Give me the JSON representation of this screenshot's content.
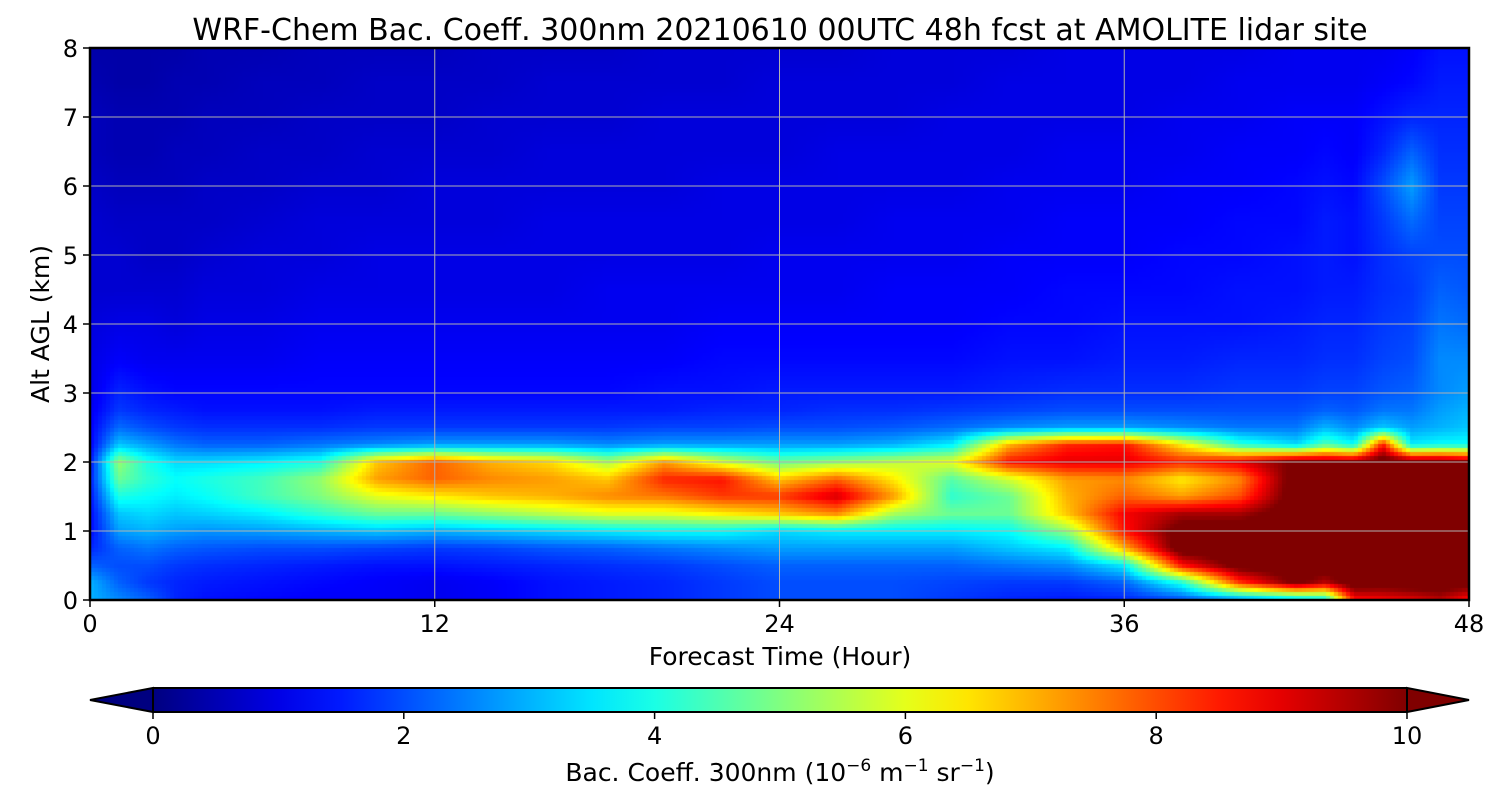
{
  "chart_data": {
    "type": "heatmap",
    "title": "WRF-Chem Bac. Coeff. 300nm  20210610 00UTC 48h fcst at AMOLITE lidar site",
    "xlabel": "Forecast Time (Hour)",
    "ylabel": "Alt AGL (km)",
    "xlim": [
      0,
      48
    ],
    "ylim": [
      0,
      8
    ],
    "x_ticks": [
      0,
      12,
      24,
      36,
      48
    ],
    "y_ticks": [
      0,
      1,
      2,
      3,
      4,
      5,
      6,
      7,
      8
    ],
    "grid": true,
    "colormap": "jet",
    "colorbar": {
      "label_prefix": "Bac. Coeff. 300nm  (10",
      "label_exp1": "−6",
      "label_mid": " m",
      "label_exp2": "−1",
      "label_mid2": " sr",
      "label_exp3": "−1",
      "label_suffix": ")",
      "vmin": 0,
      "vmax": 10,
      "ticks": [
        0,
        2,
        4,
        6,
        8,
        10
      ],
      "extend": "both",
      "orientation": "horizontal",
      "position": "bottom"
    },
    "time_hours": [
      0,
      1,
      2,
      3,
      4,
      6,
      8,
      10,
      12,
      14,
      16,
      18,
      20,
      22,
      24,
      26,
      28,
      30,
      32,
      34,
      36,
      38,
      40,
      42,
      43,
      44,
      45,
      46,
      47,
      48
    ],
    "altitude_km": [
      0,
      0.25,
      0.5,
      0.75,
      1.0,
      1.25,
      1.5,
      1.75,
      2.0,
      2.25,
      2.5,
      2.75,
      3.0,
      3.5,
      4.0,
      4.5,
      5.0,
      5.5,
      6.0,
      6.5,
      7.0,
      7.5,
      8.0
    ],
    "values": [
      [
        3.0,
        3.0,
        2.2,
        1.6,
        1.3,
        1.3,
        1.4,
        1.5,
        1.4,
        1.2,
        1.2,
        1.1,
        1.0,
        1.0,
        0.9,
        0.8,
        0.8,
        0.8,
        0.7,
        0.6,
        0.6,
        0.5,
        0.4
      ],
      [
        2.6,
        2.2,
        2.0,
        2.2,
        2.8,
        3.2,
        4.0,
        4.8,
        5.2,
        3.2,
        2.3,
        1.8,
        1.6,
        1.2,
        1.0,
        0.8,
        0.8,
        0.7,
        0.6,
        0.5,
        0.5,
        0.4,
        0.4
      ],
      [
        2.2,
        1.8,
        2.0,
        2.4,
        3.0,
        3.4,
        3.8,
        4.2,
        4.0,
        2.8,
        2.0,
        1.6,
        1.4,
        1.1,
        1.0,
        0.8,
        0.7,
        0.7,
        0.6,
        0.5,
        0.5,
        0.4,
        0.4
      ],
      [
        1.6,
        1.6,
        1.8,
        2.2,
        2.8,
        3.2,
        3.6,
        3.8,
        3.4,
        2.4,
        1.8,
        1.5,
        1.3,
        1.1,
        0.9,
        0.8,
        0.7,
        0.7,
        0.6,
        0.6,
        0.5,
        0.5,
        0.4
      ],
      [
        1.4,
        1.5,
        1.7,
        2.1,
        2.7,
        3.3,
        3.8,
        4.0,
        3.4,
        2.2,
        1.7,
        1.4,
        1.3,
        1.1,
        1.0,
        0.9,
        0.8,
        0.7,
        0.7,
        0.6,
        0.6,
        0.5,
        0.5
      ],
      [
        1.3,
        1.4,
        1.6,
        2.0,
        2.8,
        3.6,
        4.4,
        4.4,
        3.6,
        2.2,
        1.7,
        1.4,
        1.3,
        1.1,
        1.0,
        0.9,
        0.9,
        0.8,
        0.7,
        0.7,
        0.6,
        0.6,
        0.5
      ],
      [
        1.2,
        1.3,
        1.5,
        2.0,
        3.0,
        4.2,
        5.0,
        5.2,
        4.0,
        2.4,
        1.7,
        1.4,
        1.3,
        1.2,
        1.1,
        1.0,
        0.9,
        0.9,
        0.8,
        0.7,
        0.7,
        0.6,
        0.6
      ],
      [
        1.2,
        1.2,
        1.4,
        1.9,
        3.2,
        4.8,
        6.0,
        7.2,
        6.8,
        2.6,
        1.8,
        1.5,
        1.3,
        1.2,
        1.1,
        1.0,
        1.0,
        0.9,
        0.8,
        0.8,
        0.7,
        0.7,
        0.6
      ],
      [
        1.1,
        1.1,
        1.4,
        1.8,
        3.0,
        4.8,
        6.4,
        7.8,
        7.8,
        2.8,
        1.8,
        1.5,
        1.3,
        1.2,
        1.1,
        1.0,
        1.0,
        0.9,
        0.9,
        0.8,
        0.7,
        0.7,
        0.6
      ],
      [
        1.2,
        1.2,
        1.5,
        1.9,
        3.2,
        5.2,
        6.8,
        7.4,
        7.0,
        2.8,
        1.8,
        1.5,
        1.3,
        1.2,
        1.1,
        1.0,
        1.0,
        0.9,
        0.9,
        0.8,
        0.8,
        0.7,
        0.7
      ],
      [
        1.4,
        1.4,
        1.6,
        2.1,
        3.4,
        5.6,
        7.0,
        7.2,
        6.6,
        2.8,
        1.8,
        1.5,
        1.3,
        1.2,
        1.1,
        1.0,
        1.0,
        1.0,
        0.9,
        0.9,
        0.8,
        0.8,
        0.7
      ],
      [
        1.5,
        1.5,
        1.7,
        2.2,
        3.6,
        6.0,
        7.4,
        6.8,
        5.4,
        2.6,
        1.8,
        1.5,
        1.3,
        1.2,
        1.1,
        1.1,
        1.0,
        1.0,
        0.9,
        0.9,
        0.8,
        0.8,
        0.7
      ],
      [
        1.6,
        1.6,
        1.8,
        2.4,
        3.8,
        6.0,
        7.6,
        8.4,
        7.2,
        2.8,
        1.9,
        1.5,
        1.4,
        1.2,
        1.1,
        1.1,
        1.0,
        1.0,
        0.9,
        0.9,
        0.9,
        0.8,
        0.8
      ],
      [
        1.8,
        1.8,
        2.0,
        2.6,
        3.8,
        6.4,
        8.2,
        8.6,
        5.8,
        2.8,
        1.9,
        1.6,
        1.4,
        1.3,
        1.2,
        1.1,
        1.0,
        1.0,
        1.0,
        0.9,
        0.9,
        0.8,
        0.8
      ],
      [
        2.0,
        2.0,
        2.2,
        2.8,
        3.4,
        6.8,
        8.2,
        6.8,
        4.8,
        2.8,
        2.0,
        1.6,
        1.5,
        1.3,
        1.2,
        1.1,
        1.1,
        1.0,
        1.0,
        0.9,
        0.9,
        0.9,
        0.8
      ],
      [
        2.0,
        2.0,
        2.2,
        2.8,
        3.6,
        7.4,
        9.2,
        7.8,
        5.2,
        2.8,
        2.0,
        1.7,
        1.5,
        1.3,
        1.2,
        1.1,
        1.1,
        1.0,
        1.0,
        1.0,
        0.9,
        0.9,
        0.8
      ],
      [
        2.0,
        2.0,
        2.2,
        2.8,
        3.6,
        5.4,
        7.2,
        6.4,
        5.6,
        3.0,
        2.1,
        1.7,
        1.5,
        1.3,
        1.2,
        1.2,
        1.1,
        1.1,
        1.0,
        1.0,
        0.9,
        0.9,
        0.9
      ],
      [
        1.8,
        1.9,
        2.2,
        2.8,
        3.6,
        4.8,
        4.2,
        4.6,
        6.0,
        3.6,
        2.3,
        1.8,
        1.5,
        1.3,
        1.2,
        1.2,
        1.1,
        1.1,
        1.0,
        1.0,
        1.0,
        0.9,
        0.9
      ],
      [
        1.6,
        1.8,
        2.4,
        3.2,
        3.8,
        4.8,
        4.8,
        5.8,
        8.6,
        7.0,
        2.6,
        1.9,
        1.6,
        1.4,
        1.3,
        1.2,
        1.2,
        1.1,
        1.1,
        1.0,
        1.0,
        1.0,
        0.9
      ],
      [
        1.5,
        1.8,
        2.6,
        3.6,
        5.2,
        6.8,
        7.0,
        7.2,
        9.0,
        8.4,
        2.8,
        2.0,
        1.7,
        1.4,
        1.3,
        1.3,
        1.2,
        1.2,
        1.1,
        1.1,
        1.0,
        1.0,
        1.0
      ],
      [
        1.6,
        2.2,
        3.6,
        7.0,
        8.6,
        8.8,
        7.8,
        7.4,
        9.0,
        8.6,
        2.8,
        2.0,
        1.7,
        1.5,
        1.4,
        1.3,
        1.2,
        1.2,
        1.1,
        1.1,
        1.0,
        1.0,
        1.0
      ],
      [
        2.0,
        4.0,
        8.6,
        10.6,
        10.4,
        9.6,
        7.2,
        6.4,
        8.4,
        6.4,
        2.6,
        2.0,
        1.7,
        1.5,
        1.4,
        1.3,
        1.3,
        1.2,
        1.2,
        1.1,
        1.1,
        1.0,
        1.0
      ],
      [
        2.6,
        8.2,
        10.4,
        10.6,
        10.6,
        9.6,
        8.0,
        7.4,
        9.0,
        4.2,
        2.4,
        2.0,
        1.8,
        1.6,
        1.4,
        1.4,
        1.3,
        1.3,
        1.2,
        1.2,
        1.1,
        1.1,
        1.0
      ],
      [
        3.2,
        10.2,
        10.6,
        10.6,
        10.6,
        10.6,
        10.6,
        10.6,
        10.2,
        3.4,
        2.4,
        2.0,
        1.8,
        1.6,
        1.5,
        1.4,
        1.4,
        1.3,
        1.3,
        1.2,
        1.2,
        1.1,
        1.1
      ],
      [
        3.6,
        9.4,
        10.6,
        10.6,
        10.6,
        10.6,
        10.6,
        10.6,
        10.0,
        4.6,
        3.0,
        2.2,
        1.9,
        1.7,
        1.6,
        1.5,
        1.5,
        1.5,
        1.4,
        1.3,
        1.2,
        1.1,
        1.1
      ],
      [
        8.6,
        10.6,
        10.6,
        10.6,
        10.6,
        10.6,
        10.6,
        10.6,
        10.0,
        3.8,
        2.6,
        2.1,
        1.9,
        1.7,
        1.6,
        1.5,
        1.4,
        1.4,
        1.3,
        1.2,
        1.2,
        1.1,
        1.1
      ],
      [
        8.8,
        10.4,
        10.6,
        10.6,
        10.6,
        10.6,
        10.6,
        10.6,
        10.6,
        8.6,
        3.2,
        2.4,
        2.1,
        1.9,
        1.8,
        1.7,
        1.7,
        1.8,
        2.0,
        1.6,
        1.4,
        1.2,
        1.1
      ],
      [
        9.0,
        10.6,
        10.6,
        10.6,
        10.6,
        10.6,
        10.6,
        10.6,
        10.4,
        3.6,
        2.8,
        2.4,
        2.2,
        2.0,
        1.9,
        1.8,
        1.9,
        2.3,
        2.8,
        2.2,
        1.6,
        1.3,
        1.2
      ],
      [
        9.4,
        10.6,
        10.6,
        10.6,
        10.6,
        10.6,
        10.6,
        10.6,
        10.4,
        3.8,
        3.0,
        2.8,
        2.6,
        2.6,
        2.4,
        2.2,
        2.0,
        1.9,
        1.8,
        1.7,
        1.6,
        1.5,
        1.4
      ],
      [
        8.6,
        10.4,
        10.6,
        10.6,
        10.6,
        10.6,
        10.6,
        10.6,
        10.0,
        3.8,
        3.2,
        3.0,
        2.8,
        2.6,
        2.3,
        2.1,
        2.0,
        1.9,
        1.8,
        1.7,
        1.6,
        1.5,
        1.4
      ]
    ]
  }
}
